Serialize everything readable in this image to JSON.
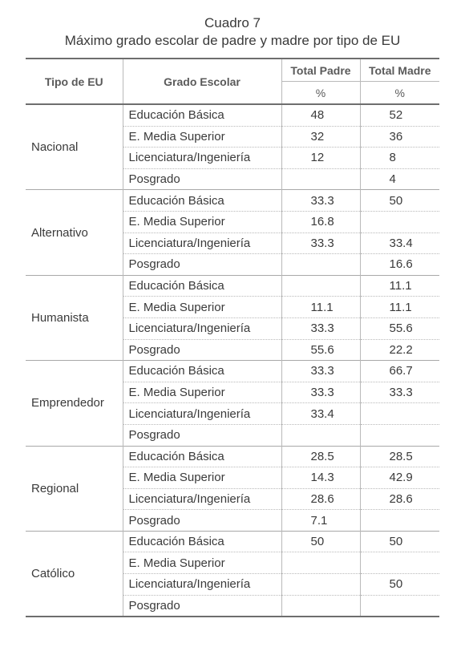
{
  "caption": {
    "number": "Cuadro 7",
    "title": "Máximo grado escolar de padre y madre por tipo de EU"
  },
  "header": {
    "tipo": "Tipo de EU",
    "grado": "Grado Escolar",
    "padre": "Total Padre",
    "madre": "Total Madre",
    "unit_padre": "%",
    "unit_madre": "%"
  },
  "groups": [
    {
      "tipo": "Nacional",
      "rows": [
        {
          "grado": "Educación Básica",
          "padre": "48",
          "madre": "52"
        },
        {
          "grado": "E. Media Superior",
          "padre": "32",
          "madre": "36"
        },
        {
          "grado": "Licenciatura/Ingeniería",
          "padre": "12",
          "madre": "8"
        },
        {
          "grado": "Posgrado",
          "padre": "",
          "madre": "4"
        }
      ]
    },
    {
      "tipo": "Alternativo",
      "rows": [
        {
          "grado": "Educación Básica",
          "padre": "33.3",
          "madre": "50"
        },
        {
          "grado": "E. Media Superior",
          "padre": "16.8",
          "madre": ""
        },
        {
          "grado": "Licenciatura/Ingeniería",
          "padre": "33.3",
          "madre": "33.4"
        },
        {
          "grado": "Posgrado",
          "padre": "",
          "madre": "16.6"
        }
      ]
    },
    {
      "tipo": "Humanista",
      "rows": [
        {
          "grado": "Educación Básica",
          "padre": "",
          "madre": "11.1"
        },
        {
          "grado": "E. Media Superior",
          "padre": "11.1",
          "madre": "11.1"
        },
        {
          "grado": "Licenciatura/Ingeniería",
          "padre": "33.3",
          "madre": "55.6"
        },
        {
          "grado": "Posgrado",
          "padre": "55.6",
          "madre": "22.2"
        }
      ]
    },
    {
      "tipo": "Emprendedor",
      "rows": [
        {
          "grado": "Educación Básica",
          "padre": "33.3",
          "madre": "66.7"
        },
        {
          "grado": "E. Media Superior",
          "padre": "33.3",
          "madre": "33.3"
        },
        {
          "grado": "Licenciatura/Ingeniería",
          "padre": "33.4",
          "madre": ""
        },
        {
          "grado": "Posgrado",
          "padre": "",
          "madre": ""
        }
      ]
    },
    {
      "tipo": "Regional",
      "rows": [
        {
          "grado": "Educación Básica",
          "padre": "28.5",
          "madre": "28.5"
        },
        {
          "grado": "E. Media Superior",
          "padre": "14.3",
          "madre": "42.9"
        },
        {
          "grado": "Licenciatura/Ingeniería",
          "padre": "28.6",
          "madre": "28.6"
        },
        {
          "grado": "Posgrado",
          "padre": "7.1",
          "madre": ""
        }
      ]
    },
    {
      "tipo": "Católico",
      "rows": [
        {
          "grado": "Educación Básica",
          "padre": "50",
          "madre": "50"
        },
        {
          "grado": "E. Media Superior",
          "padre": "",
          "madre": ""
        },
        {
          "grado": "Licenciatura/Ingeniería",
          "padre": "",
          "madre": "50"
        },
        {
          "grado": "Posgrado",
          "padre": "",
          "madre": ""
        }
      ]
    }
  ]
}
